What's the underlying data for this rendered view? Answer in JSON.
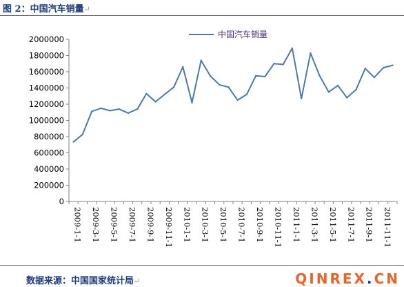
{
  "figure": {
    "title": "图 2：中国汽车销量",
    "source": "数据来源：中国国家统计局",
    "paragraph_mark": "↵"
  },
  "watermark": {
    "part1": "QINREX",
    "dot": ".",
    "part2": "CN"
  },
  "colors": {
    "line": "#4a7aa8",
    "title_text": "#1f3b7a",
    "watermark": "#e8642a"
  },
  "chart_data": {
    "type": "line",
    "legend_position": "top-center",
    "grid": false,
    "ylim": [
      0,
      2000000
    ],
    "yticks": [
      "0",
      "200000",
      "400000",
      "600000",
      "800000",
      "1000000",
      "1200000",
      "1400000",
      "1600000",
      "1800000",
      "2000000"
    ],
    "xtick_labels": [
      "2009-1-1",
      "2009-3-1",
      "2009-5-1",
      "2009-7-1",
      "2009-9-1",
      "2009-11-1",
      "2010-1-1",
      "2010-3-1",
      "2010-5-1",
      "2010-7-1",
      "2010-9-1",
      "2010-11-1",
      "2011-1-1",
      "2011-3-1",
      "2011-5-1",
      "2011-7-1",
      "2011-9-1",
      "2011-11-1"
    ],
    "x": [
      "2009-1",
      "2009-2",
      "2009-3",
      "2009-4",
      "2009-5",
      "2009-6",
      "2009-7",
      "2009-8",
      "2009-9",
      "2009-10",
      "2009-11",
      "2009-12",
      "2010-1",
      "2010-2",
      "2010-3",
      "2010-4",
      "2010-5",
      "2010-6",
      "2010-7",
      "2010-8",
      "2010-9",
      "2010-10",
      "2010-11",
      "2010-12",
      "2011-1",
      "2011-2",
      "2011-3",
      "2011-4",
      "2011-5",
      "2011-6",
      "2011-7",
      "2011-8",
      "2011-9",
      "2011-10",
      "2011-11",
      "2011-12"
    ],
    "series": [
      {
        "name": "中国汽车销量",
        "values": [
          735000,
          827000,
          1110000,
          1150000,
          1120000,
          1140000,
          1090000,
          1140000,
          1330000,
          1230000,
          1320000,
          1410000,
          1660000,
          1220000,
          1740000,
          1550000,
          1440000,
          1410000,
          1250000,
          1320000,
          1550000,
          1540000,
          1700000,
          1690000,
          1890000,
          1270000,
          1830000,
          1550000,
          1350000,
          1430000,
          1280000,
          1380000,
          1640000,
          1530000,
          1650000,
          1680000
        ]
      }
    ]
  }
}
